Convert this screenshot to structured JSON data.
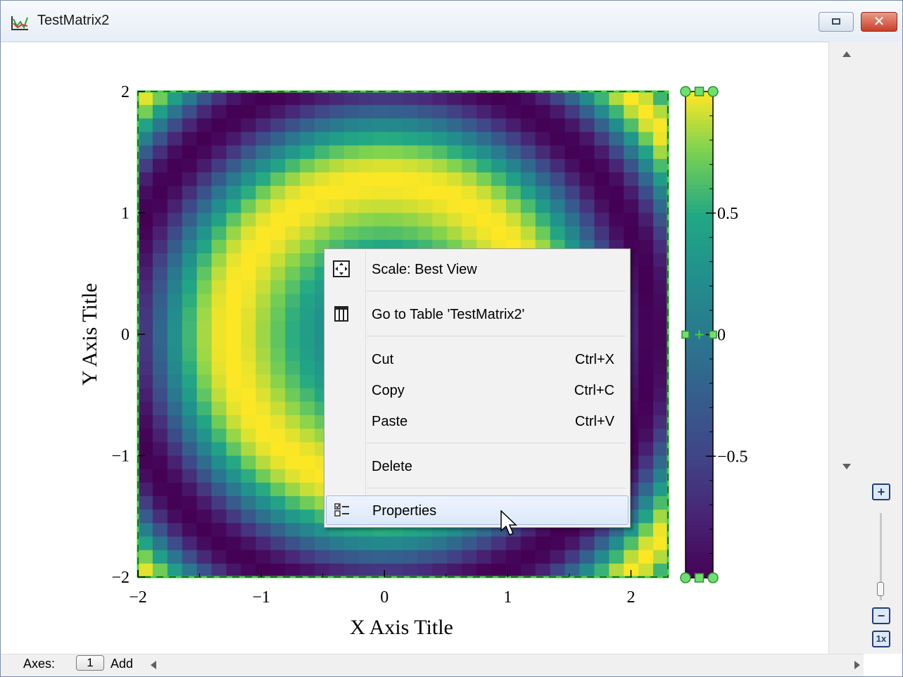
{
  "window": {
    "title": "TestMatrix2",
    "icon": "graph-window-icon",
    "controls": {
      "restore": "restore-icon",
      "close": "✕"
    }
  },
  "chart_data": {
    "type": "heatmap",
    "xlabel": "X Axis Title",
    "ylabel": "Y Axis Title",
    "x_range": [
      -2,
      2.3
    ],
    "y_range": [
      -2,
      2
    ],
    "x_ticks": [
      -2,
      -1,
      0,
      1,
      2
    ],
    "x_tick_labels": [
      "−2",
      "−1",
      "0",
      "1",
      "2"
    ],
    "y_ticks": [
      -2,
      -1,
      0,
      1,
      2
    ],
    "y_tick_labels": [
      "−2",
      "−1",
      "0",
      "1",
      "2"
    ],
    "colorscale": "viridis",
    "z_range": [
      -1,
      1
    ],
    "colorbar_ticks": [
      0.5,
      0,
      -0.5
    ],
    "colorbar_tick_labels": [
      "0.5",
      "0",
      "−0.5"
    ],
    "grid_note": "pattern resembles sin(x^2 + y^2) on [-2,2.3]x[-2,2]",
    "grid_columns": 36,
    "grid_rows": 36
  },
  "context_menu": {
    "items": [
      {
        "label": "Scale: Best View",
        "icon": "best-view-icon",
        "shortcut": ""
      },
      {
        "label": "Go to Table 'TestMatrix2'",
        "icon": "table-icon",
        "shortcut": ""
      },
      {
        "label": "Cut",
        "shortcut": "Ctrl+X"
      },
      {
        "label": "Copy",
        "shortcut": "Ctrl+C"
      },
      {
        "label": "Paste",
        "shortcut": "Ctrl+V"
      },
      {
        "label": "Delete",
        "shortcut": ""
      },
      {
        "label": "Properties",
        "icon": "properties-icon",
        "shortcut": "",
        "highlighted": true
      }
    ]
  },
  "status_bar": {
    "axes_label": "Axes:",
    "layer_button": "1",
    "add_label": "Add"
  },
  "zoom": {
    "plus": "+",
    "minus": "−",
    "reset": "1x"
  }
}
